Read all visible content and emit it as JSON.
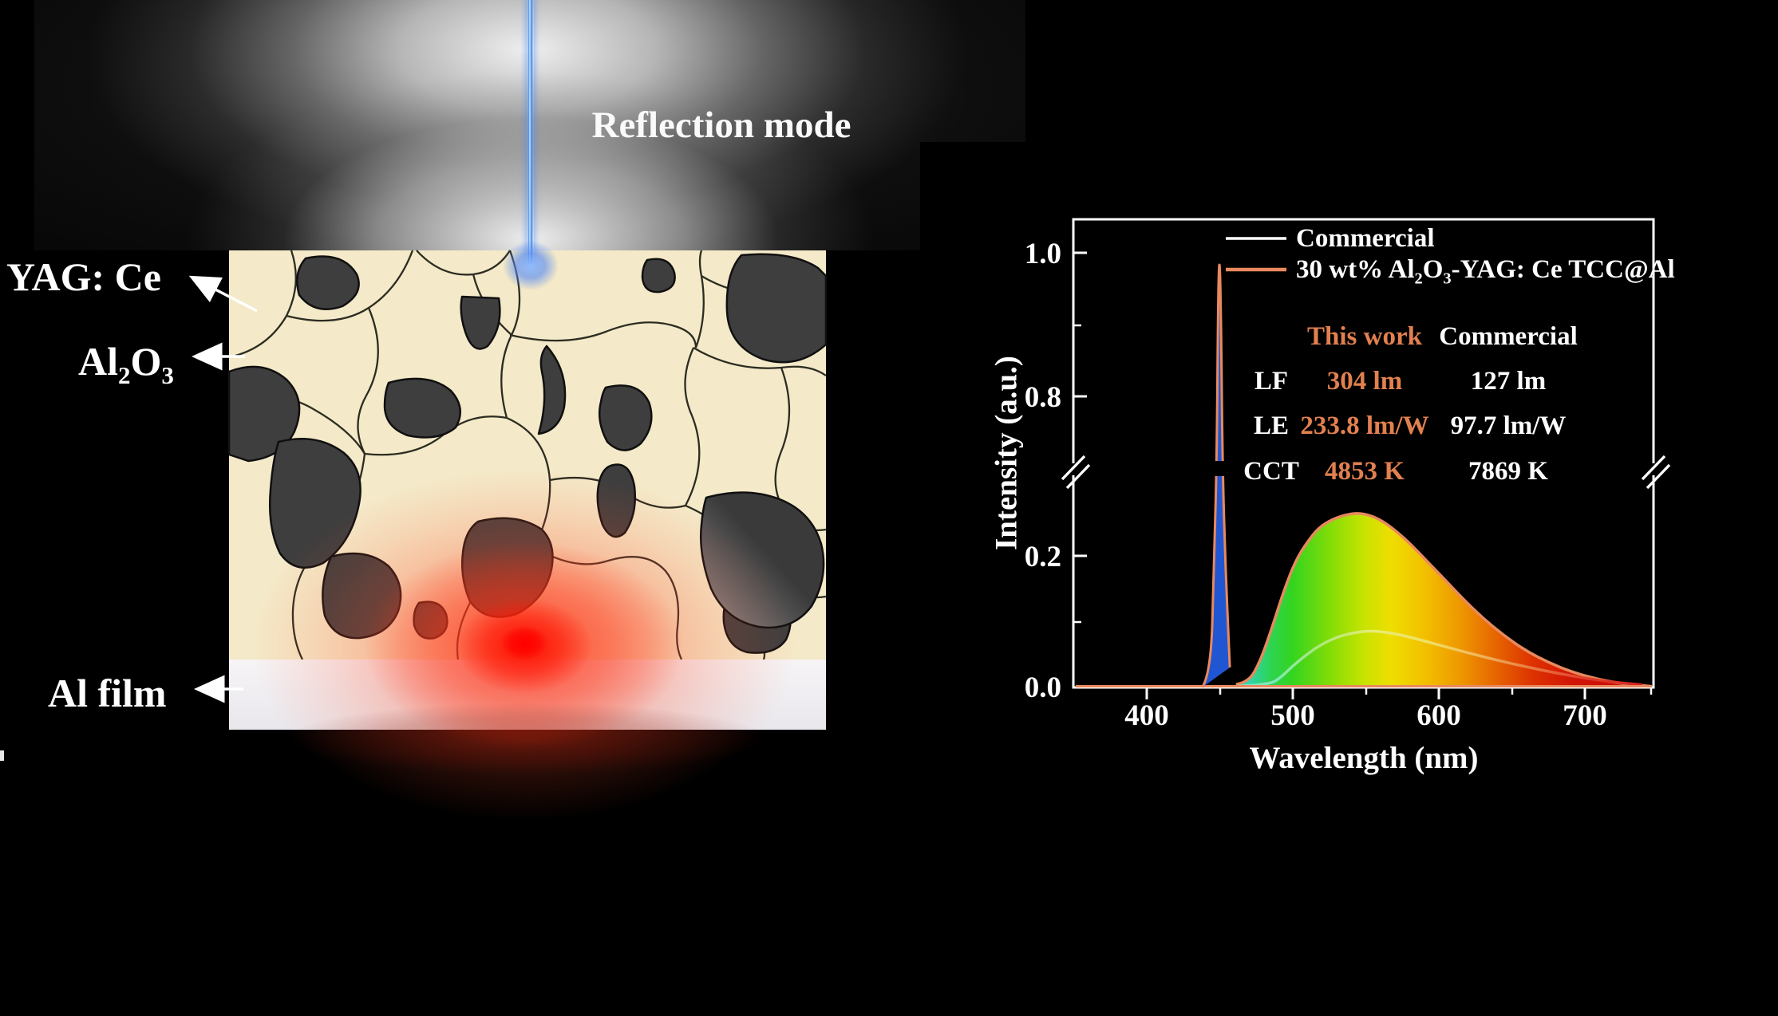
{
  "diagram": {
    "caption": "Reflection mode",
    "labels": {
      "yag": "YAG: Ce",
      "al2o3_pre": "Al",
      "al2o3_sub1": "2",
      "al2o3_mid": "O",
      "al2o3_sub2": "3",
      "al_film": "Al film"
    }
  },
  "chart": {
    "y_label": "Intensity (a.u.)",
    "x_label": "Wavelength (nm)",
    "y_ticks": [
      "1.0",
      "0.8",
      "0.2",
      "0.0"
    ],
    "x_ticks": [
      "400",
      "500",
      "600",
      "700"
    ],
    "legend": {
      "commercial": "Commercial",
      "this_work_pre": "30 wt% Al",
      "this_work_sub1": "2",
      "this_work_mid": "O",
      "this_work_sub2": "3",
      "this_work_post": "-YAG: Ce TCC@Al"
    },
    "table": {
      "col_this_work": "This work",
      "col_commercial": "Commercial",
      "rows": [
        {
          "param": "LF",
          "this_work": "304 lm",
          "commercial": "127 lm"
        },
        {
          "param": "LE",
          "this_work": "233.8 lm/W",
          "commercial": "97.7 lm/W"
        },
        {
          "param": "CCT",
          "this_work": "4853 K",
          "commercial": "7869 K"
        }
      ]
    },
    "colors": {
      "this_work_accent": "#E2804F",
      "curve_outline": "#E8895E",
      "commercial": "#FFFFFF",
      "laser_blue": "#2156D2"
    }
  },
  "chart_data": {
    "type": "area",
    "title": "",
    "xlabel": "Wavelength (nm)",
    "ylabel": "Intensity (a.u.)",
    "xlim": [
      350,
      747
    ],
    "ylim_lower_section": [
      0,
      0.33
    ],
    "ylim_upper_section": [
      0.7,
      1.05
    ],
    "axis_break": true,
    "x_major_ticks": [
      400,
      500,
      600,
      700
    ],
    "y_major_ticks": [
      0.0,
      0.2,
      0.8,
      1.0
    ],
    "series": [
      {
        "name": "Commercial",
        "color": "#FFFFFF",
        "x": [
          438,
          444,
          446,
          448,
          449,
          450,
          451,
          452,
          454,
          457,
          462,
          484,
          492,
          500,
          510,
          520,
          532,
          544,
          554,
          564,
          576,
          590,
          605,
          622,
          640,
          660,
          680,
          700,
          720,
          740
        ],
        "y": [
          0,
          0.015,
          0.14,
          0.55,
          0.9,
          1.0,
          0.88,
          0.5,
          0.15,
          0.02,
          0.002,
          0.004,
          0.015,
          0.032,
          0.05,
          0.065,
          0.077,
          0.083,
          0.085,
          0.083,
          0.078,
          0.07,
          0.061,
          0.051,
          0.041,
          0.031,
          0.022,
          0.014,
          0.008,
          0.004
        ]
      },
      {
        "name": "30 wt% Al2O3-YAG: Ce TCC@Al",
        "color": "#E8895E",
        "x": [
          438,
          444,
          446,
          448,
          449,
          450,
          451,
          452,
          454,
          457,
          462,
          470,
          478,
          486,
          494,
          502,
          510,
          518,
          527,
          536,
          545,
          554,
          563,
          572,
          582,
          592,
          604,
          616,
          630,
          645,
          660,
          676,
          692,
          710,
          728,
          745
        ],
        "y": [
          0,
          0.02,
          0.18,
          0.62,
          0.95,
          1.0,
          0.9,
          0.55,
          0.18,
          0.03,
          0.005,
          0.008,
          0.04,
          0.09,
          0.145,
          0.19,
          0.218,
          0.24,
          0.252,
          0.259,
          0.262,
          0.258,
          0.248,
          0.233,
          0.213,
          0.19,
          0.163,
          0.135,
          0.105,
          0.078,
          0.055,
          0.037,
          0.023,
          0.012,
          0.005,
          0.002
        ]
      }
    ]
  }
}
